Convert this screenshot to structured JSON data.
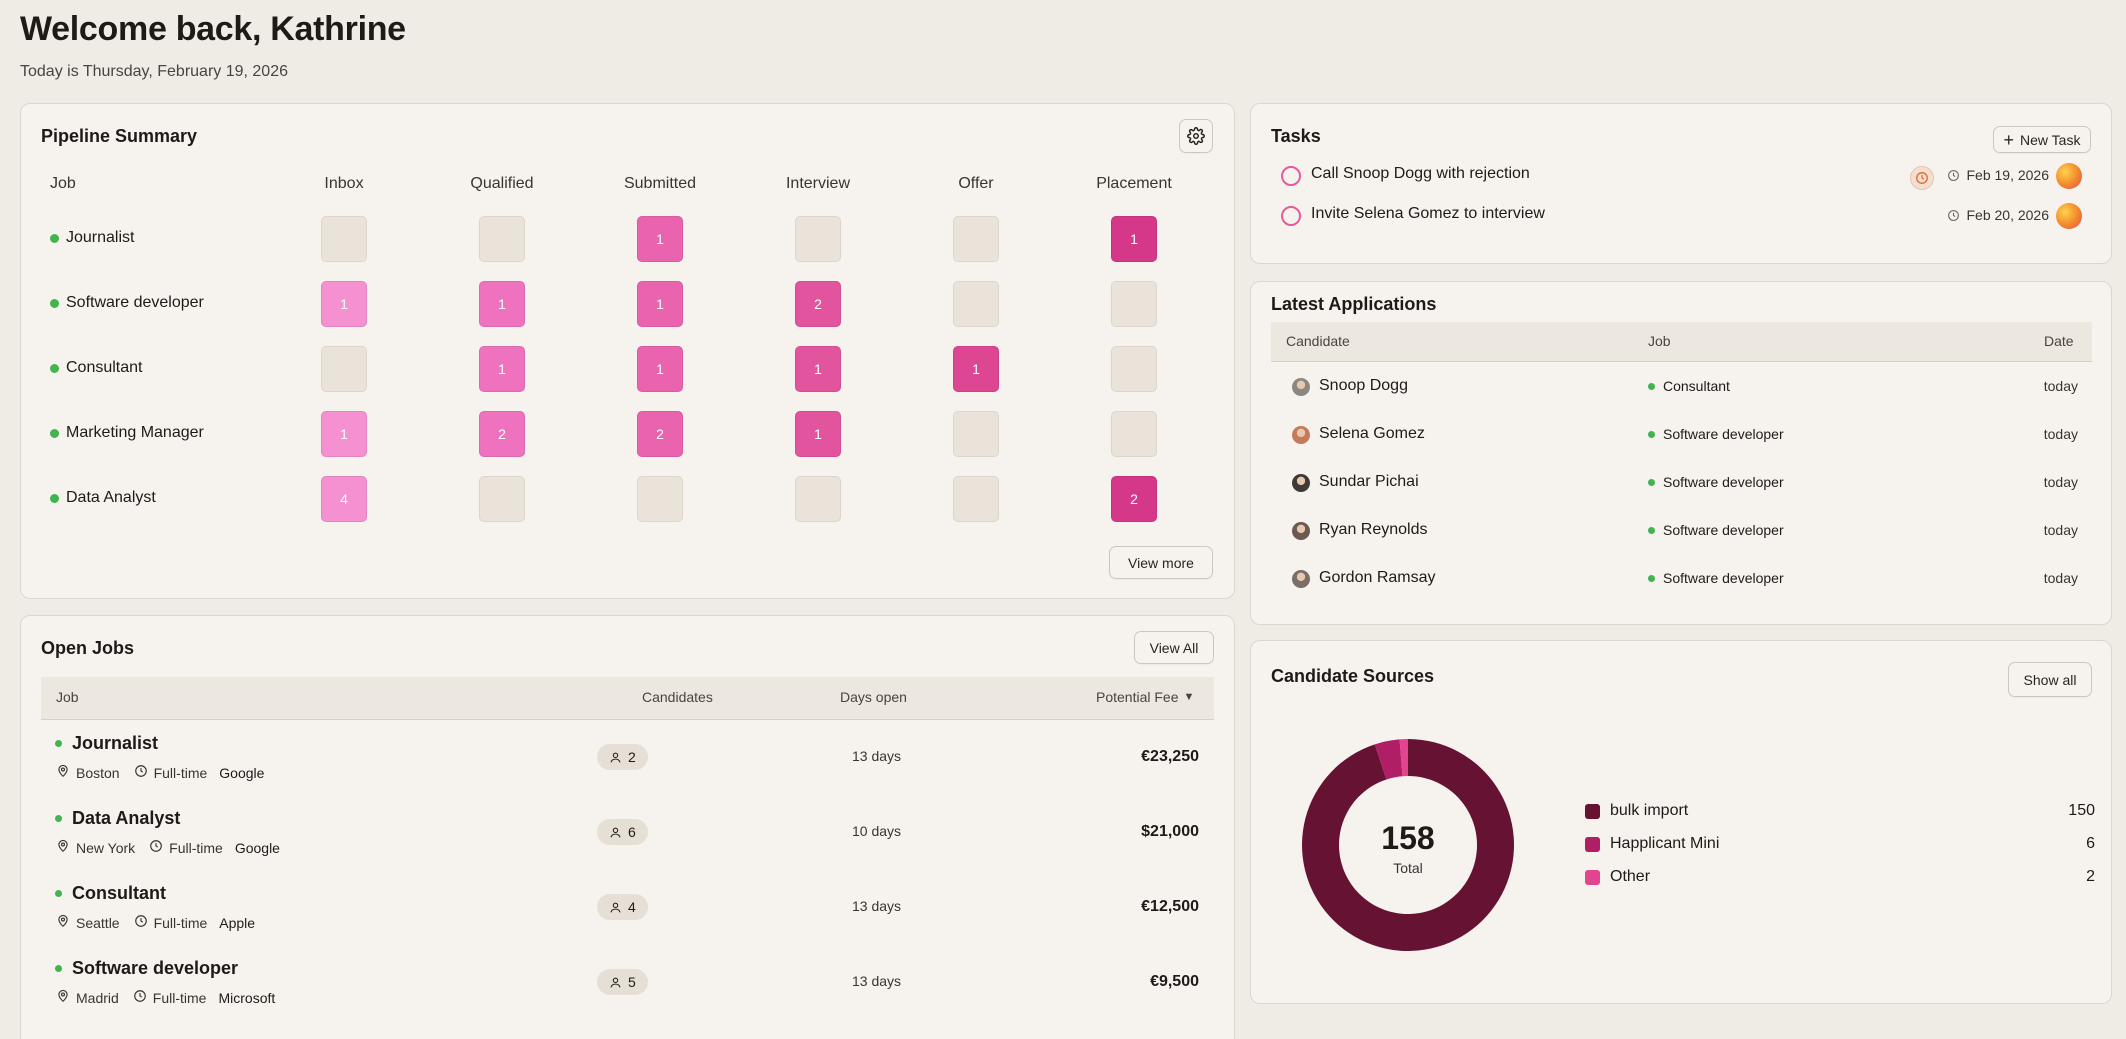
{
  "header": {
    "title": "Welcome back, Kathrine",
    "subtitle": "Today is Thursday, February 19, 2026"
  },
  "pipeline": {
    "title": "Pipeline Summary",
    "columns": [
      "Job",
      "Inbox",
      "Qualified",
      "Submitted",
      "Interview",
      "Offer",
      "Placement"
    ],
    "rows": [
      {
        "job": "Journalist",
        "counts": [
          "",
          "",
          "1",
          "",
          "",
          "1"
        ]
      },
      {
        "job": "Software developer",
        "counts": [
          "1",
          "1",
          "1",
          "2",
          "",
          ""
        ]
      },
      {
        "job": "Consultant",
        "counts": [
          "",
          "1",
          "1",
          "1",
          "1",
          ""
        ]
      },
      {
        "job": "Marketing Manager",
        "counts": [
          "1",
          "2",
          "2",
          "1",
          "",
          ""
        ]
      },
      {
        "job": "Data Analyst",
        "counts": [
          "4",
          "",
          "",
          "",
          "",
          "2"
        ]
      }
    ],
    "stage_colors": [
      "#f591d0",
      "#ee72bd",
      "#e963ae",
      "#e2559e",
      "#dd4693",
      "#d63889"
    ],
    "view_more_label": "View more"
  },
  "open_jobs": {
    "title": "Open Jobs",
    "view_all_label": "View All",
    "headers": {
      "job": "Job",
      "candidates": "Candidates",
      "days_open": "Days open",
      "fee": "Potential Fee"
    },
    "rows": [
      {
        "name": "Journalist",
        "location": "Boston",
        "type": "Full-time",
        "company": "Google",
        "candidates": "2",
        "days": "13 days",
        "fee": "€23,250"
      },
      {
        "name": "Data Analyst",
        "location": "New York",
        "type": "Full-time",
        "company": "Google",
        "candidates": "6",
        "days": "10 days",
        "fee": "$21,000"
      },
      {
        "name": "Consultant",
        "location": "Seattle",
        "type": "Full-time",
        "company": "Apple",
        "candidates": "4",
        "days": "13 days",
        "fee": "€12,500"
      },
      {
        "name": "Software developer",
        "location": "Madrid",
        "type": "Full-time",
        "company": "Microsoft",
        "candidates": "5",
        "days": "13 days",
        "fee": "€9,500"
      }
    ]
  },
  "tasks": {
    "title": "Tasks",
    "new_task_label": "New Task",
    "items": [
      {
        "text": "Call Snoop Dogg with rejection",
        "date": "Feb 19, 2026"
      },
      {
        "text": "Invite Selena Gomez to interview",
        "date": "Feb 20, 2026"
      }
    ]
  },
  "latest_applications": {
    "title": "Latest Applications",
    "headers": {
      "candidate": "Candidate",
      "job": "Job",
      "date": "Date"
    },
    "rows": [
      {
        "candidate": "Snoop Dogg",
        "job": "Consultant",
        "date": "today"
      },
      {
        "candidate": "Selena Gomez",
        "job": "Software developer",
        "date": "today"
      },
      {
        "candidate": "Sundar Pichai",
        "job": "Software developer",
        "date": "today"
      },
      {
        "candidate": "Ryan Reynolds",
        "job": "Software developer",
        "date": "today"
      },
      {
        "candidate": "Gordon Ramsay",
        "job": "Software developer",
        "date": "today"
      }
    ]
  },
  "candidate_sources": {
    "title": "Candidate Sources",
    "show_all_label": "Show all",
    "total": "158",
    "total_label": "Total",
    "sources": [
      {
        "label": "bulk import",
        "value": 150,
        "color": "#661233"
      },
      {
        "label": "Happlicant Mini",
        "value": 6,
        "color": "#b01f66"
      },
      {
        "label": "Other",
        "value": 2,
        "color": "#e2448f"
      }
    ]
  }
}
